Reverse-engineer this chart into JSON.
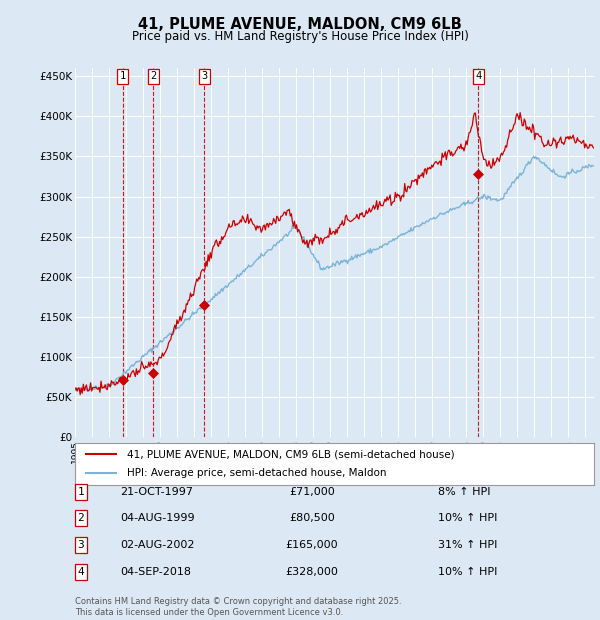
{
  "title": "41, PLUME AVENUE, MALDON, CM9 6LB",
  "subtitle": "Price paid vs. HM Land Registry's House Price Index (HPI)",
  "background_color": "#dce9f5",
  "plot_bg_color": "#dce9f5",
  "ylabel_ticks": [
    "£0",
    "£50K",
    "£100K",
    "£150K",
    "£200K",
    "£250K",
    "£300K",
    "£350K",
    "£400K",
    "£450K"
  ],
  "ytick_values": [
    0,
    50000,
    100000,
    150000,
    200000,
    250000,
    300000,
    350000,
    400000,
    450000
  ],
  "ylim": [
    0,
    460000
  ],
  "xlim_start": 1995.0,
  "xlim_end": 2025.5,
  "purchases": [
    {
      "num": 1,
      "date": "21-OCT-1997",
      "price": 71000,
      "year": 1997.8,
      "hpi_pct": "8% ↑ HPI"
    },
    {
      "num": 2,
      "date": "04-AUG-1999",
      "price": 80500,
      "year": 1999.6,
      "hpi_pct": "10% ↑ HPI"
    },
    {
      "num": 3,
      "date": "02-AUG-2002",
      "price": 165000,
      "year": 2002.6,
      "hpi_pct": "31% ↑ HPI"
    },
    {
      "num": 4,
      "date": "04-SEP-2018",
      "price": 328000,
      "year": 2018.7,
      "hpi_pct": "10% ↑ HPI"
    }
  ],
  "legend_line1": "41, PLUME AVENUE, MALDON, CM9 6LB (semi-detached house)",
  "legend_line2": "HPI: Average price, semi-detached house, Maldon",
  "footer": "Contains HM Land Registry data © Crown copyright and database right 2025.\nThis data is licensed under the Open Government Licence v3.0.",
  "hpi_color": "#7ab3d8",
  "price_color": "#cc0000",
  "vline_color": "#cc0000",
  "box_color": "#cc0000",
  "grid_color": "#ffffff",
  "white": "#ffffff"
}
